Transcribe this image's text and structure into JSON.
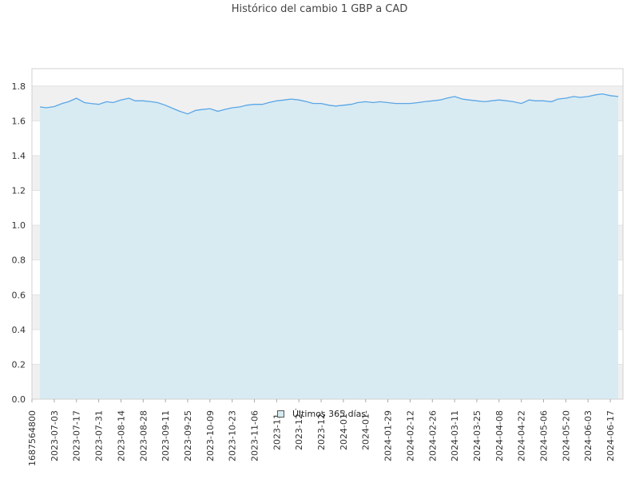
{
  "chart_data": {
    "type": "area",
    "title": "Histórico del cambio 1 GBP a CAD",
    "ylim": [
      0,
      1.9
    ],
    "y_ticks": [
      "0.0",
      "0.2",
      "0.4",
      "0.6",
      "0.8",
      "1.0",
      "1.2",
      "1.4",
      "1.6",
      "1.8"
    ],
    "x_tick_labels": [
      "1687564800",
      "2023-07-03",
      "2023-07-17",
      "2023-07-31",
      "2023-08-14",
      "2023-08-28",
      "2023-09-11",
      "2023-09-25",
      "2023-10-09",
      "2023-10-23",
      "2023-11-06",
      "2023-11-",
      "2023-12-",
      "2023-12-",
      "2024-01-",
      "2024-01-",
      "2024-01-29",
      "2024-02-12",
      "2024-02-26",
      "2024-03-11",
      "2024-03-25",
      "2024-04-08",
      "2024-04-22",
      "2024-05-06",
      "2024-05-20",
      "2024-06-03",
      "2024-06-17"
    ],
    "grid": true,
    "legend_position": "bottom-center",
    "series": [
      {
        "name": "Últimos 365 días",
        "line_color": "#5aa6e6",
        "fill_color": "#d6eaf2",
        "x": [
          "2023-06-24",
          "2023-06-28",
          "2023-07-03",
          "2023-07-08",
          "2023-07-12",
          "2023-07-17",
          "2023-07-22",
          "2023-07-26",
          "2023-07-31",
          "2023-08-05",
          "2023-08-09",
          "2023-08-14",
          "2023-08-19",
          "2023-08-23",
          "2023-08-28",
          "2023-09-02",
          "2023-09-06",
          "2023-09-11",
          "2023-09-16",
          "2023-09-20",
          "2023-09-25",
          "2023-09-30",
          "2023-10-04",
          "2023-10-09",
          "2023-10-14",
          "2023-10-18",
          "2023-10-23",
          "2023-10-28",
          "2023-11-01",
          "2023-11-06",
          "2023-11-11",
          "2023-11-15",
          "2023-11-20",
          "2023-11-25",
          "2023-11-29",
          "2023-12-04",
          "2023-12-09",
          "2023-12-13",
          "2023-12-18",
          "2023-12-23",
          "2023-12-27",
          "2024-01-01",
          "2024-01-06",
          "2024-01-10",
          "2024-01-15",
          "2024-01-20",
          "2024-01-24",
          "2024-01-29",
          "2024-02-03",
          "2024-02-07",
          "2024-02-12",
          "2024-02-17",
          "2024-02-21",
          "2024-02-26",
          "2024-03-02",
          "2024-03-06",
          "2024-03-11",
          "2024-03-16",
          "2024-03-20",
          "2024-03-25",
          "2024-03-30",
          "2024-04-03",
          "2024-04-08",
          "2024-04-13",
          "2024-04-17",
          "2024-04-22",
          "2024-04-27",
          "2024-05-01",
          "2024-05-06",
          "2024-05-11",
          "2024-05-15",
          "2024-05-20",
          "2024-05-25",
          "2024-05-29",
          "2024-06-03",
          "2024-06-08",
          "2024-06-12",
          "2024-06-17",
          "2024-06-22"
        ],
        "values": [
          1.68,
          1.675,
          1.682,
          1.7,
          1.71,
          1.73,
          1.705,
          1.7,
          1.695,
          1.71,
          1.705,
          1.72,
          1.73,
          1.715,
          1.715,
          1.71,
          1.705,
          1.69,
          1.67,
          1.655,
          1.64,
          1.66,
          1.665,
          1.67,
          1.655,
          1.665,
          1.675,
          1.68,
          1.69,
          1.695,
          1.695,
          1.705,
          1.715,
          1.72,
          1.725,
          1.72,
          1.71,
          1.7,
          1.7,
          1.69,
          1.685,
          1.69,
          1.695,
          1.705,
          1.71,
          1.705,
          1.71,
          1.705,
          1.7,
          1.7,
          1.7,
          1.705,
          1.71,
          1.715,
          1.72,
          1.73,
          1.74,
          1.725,
          1.72,
          1.715,
          1.71,
          1.715,
          1.72,
          1.715,
          1.71,
          1.7,
          1.72,
          1.715,
          1.715,
          1.71,
          1.725,
          1.73,
          1.74,
          1.735,
          1.74,
          1.75,
          1.755,
          1.745,
          1.74
        ]
      }
    ]
  }
}
